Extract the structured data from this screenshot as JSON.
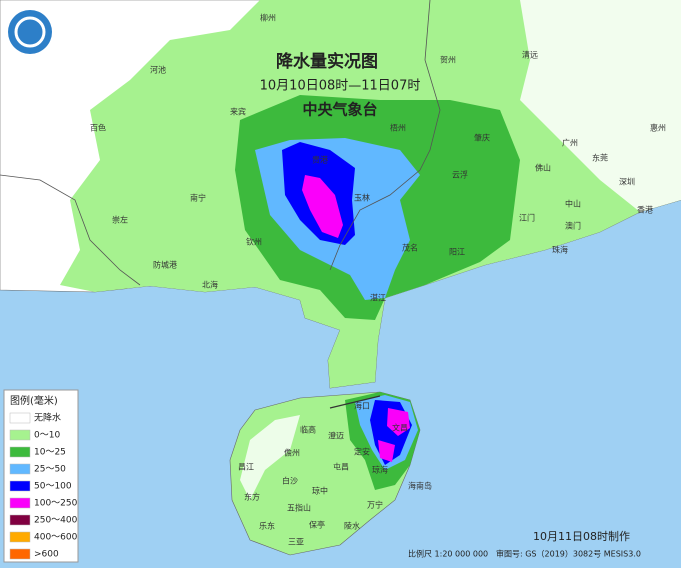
{
  "title": "降水量实况图",
  "period": "10月10日08时—11日07时",
  "issuer": "中央气象台",
  "legend": {
    "title": "图例(毫米)",
    "items": [
      {
        "label": "无降水",
        "color": "#ffffff"
      },
      {
        "label": "0～10",
        "color": "#a6f28f"
      },
      {
        "label": "10～25",
        "color": "#3dba3d"
      },
      {
        "label": "25～50",
        "color": "#61b8ff"
      },
      {
        "label": "50～100",
        "color": "#0000fe"
      },
      {
        "label": "100～250",
        "color": "#fa00fa"
      },
      {
        "label": "250～400",
        "color": "#800040"
      },
      {
        "label": "400～600",
        "color": "#ffaa00"
      },
      {
        "label": ">600",
        "color": "#ff6600"
      }
    ]
  },
  "footer": {
    "made": "10月11日08时制作",
    "scale": "比例尺 1:20 000 000",
    "approval": "审图号: GS（2019）3082号 MESIS3.0"
  },
  "places": [
    "柳州",
    "河池",
    "百色",
    "来宾",
    "贺州",
    "梧州",
    "南宁",
    "崇左",
    "防城港",
    "钦州",
    "北海",
    "玉林",
    "贵港",
    "云浮",
    "肇庆",
    "清远",
    "广州",
    "佛山",
    "东莞",
    "惠州",
    "深圳",
    "香港",
    "澳门",
    "中山",
    "珠海",
    "江门",
    "阳江",
    "茂名",
    "湛江",
    "海口",
    "文昌",
    "澄迈",
    "临高",
    "儋州",
    "定安",
    "屯昌",
    "琼海",
    "昌江",
    "白沙",
    "琼中",
    "万宁",
    "东方",
    "五指山",
    "乐东",
    "保亭",
    "陵水",
    "三亚",
    "海南岛"
  ]
}
